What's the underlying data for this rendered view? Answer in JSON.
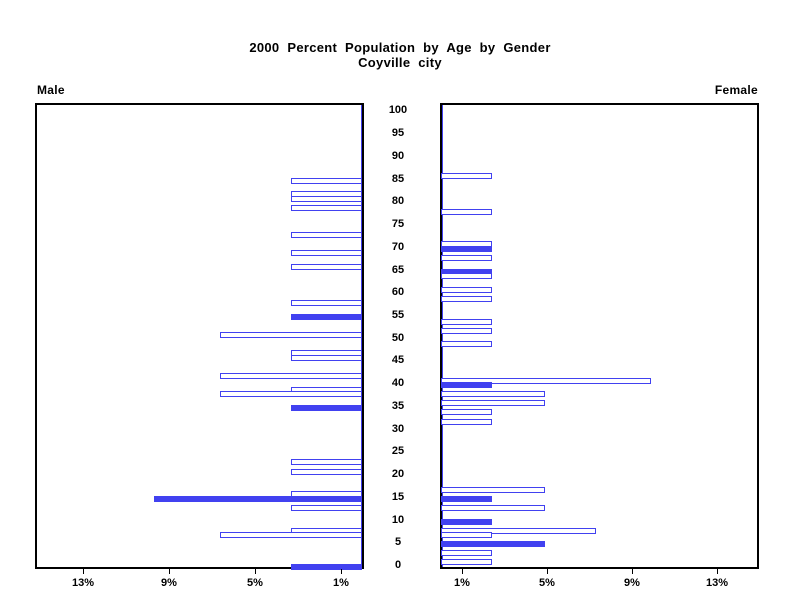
{
  "colors": {
    "bar_blue": "#4141f0",
    "frame": "#000000",
    "background": "#ffffff"
  },
  "chart_data": {
    "type": "bar",
    "subtype": "population_pyramid",
    "title": "2000 Percent Population by Age by Gender",
    "subtitle": "Coyville city",
    "orientation": "horizontal, mirrored; male bars extend left, female bars extend right",
    "grid": "off",
    "legend": "none",
    "age_axis": {
      "min": 0,
      "max": 100,
      "step": 5,
      "tick_labels": [
        "0",
        "5",
        "10",
        "15",
        "20",
        "25",
        "30",
        "35",
        "40",
        "45",
        "50",
        "55",
        "60",
        "65",
        "70",
        "75",
        "80",
        "85",
        "90",
        "95",
        "100"
      ]
    },
    "percent_axis": {
      "min": 0,
      "max": 15,
      "male_ticks": [
        {
          "pct": 13,
          "label": "13%"
        },
        {
          "pct": 9,
          "label": "9%"
        },
        {
          "pct": 5,
          "label": "5%"
        },
        {
          "pct": 1,
          "label": "1%"
        }
      ],
      "female_ticks": [
        {
          "pct": 1,
          "label": "1%"
        },
        {
          "pct": 5,
          "label": "5%"
        },
        {
          "pct": 9,
          "label": "9%"
        },
        {
          "pct": 13,
          "label": "13%"
        }
      ]
    },
    "bar_style_note": "hollow = white bar with blue outline; filled = solid blue bar",
    "male": {
      "label": "Male",
      "bars": [
        {
          "age": 85,
          "pct": 3.3,
          "filled": false
        },
        {
          "age": 82,
          "pct": 3.3,
          "filled": false
        },
        {
          "age": 81,
          "pct": 3.3,
          "filled": false
        },
        {
          "age": 79,
          "pct": 3.3,
          "filled": false
        },
        {
          "age": 73,
          "pct": 3.3,
          "filled": false
        },
        {
          "age": 69,
          "pct": 3.3,
          "filled": false
        },
        {
          "age": 66,
          "pct": 3.3,
          "filled": false
        },
        {
          "age": 58,
          "pct": 3.3,
          "filled": false
        },
        {
          "age": 55,
          "pct": 3.3,
          "filled": true
        },
        {
          "age": 51,
          "pct": 6.6,
          "filled": false
        },
        {
          "age": 47,
          "pct": 3.3,
          "filled": false
        },
        {
          "age": 46,
          "pct": 3.3,
          "filled": false
        },
        {
          "age": 42,
          "pct": 6.6,
          "filled": false
        },
        {
          "age": 39,
          "pct": 3.3,
          "filled": false
        },
        {
          "age": 38,
          "pct": 6.6,
          "filled": false
        },
        {
          "age": 35,
          "pct": 3.3,
          "filled": true
        },
        {
          "age": 23,
          "pct": 3.3,
          "filled": false
        },
        {
          "age": 21,
          "pct": 3.3,
          "filled": false
        },
        {
          "age": 16,
          "pct": 3.3,
          "filled": false
        },
        {
          "age": 15,
          "pct": 9.7,
          "filled": true
        },
        {
          "age": 13,
          "pct": 3.3,
          "filled": false
        },
        {
          "age": 8,
          "pct": 3.3,
          "filled": false
        },
        {
          "age": 7,
          "pct": 6.6,
          "filled": false
        },
        {
          "age": 0,
          "pct": 3.3,
          "filled": true
        }
      ]
    },
    "female": {
      "label": "Female",
      "bars": [
        {
          "age": 86,
          "pct": 2.4,
          "filled": false
        },
        {
          "age": 78,
          "pct": 2.4,
          "filled": false
        },
        {
          "age": 71,
          "pct": 2.4,
          "filled": false
        },
        {
          "age": 70,
          "pct": 2.4,
          "filled": true
        },
        {
          "age": 68,
          "pct": 2.4,
          "filled": false
        },
        {
          "age": 65,
          "pct": 2.4,
          "filled": true
        },
        {
          "age": 64,
          "pct": 2.4,
          "filled": false
        },
        {
          "age": 61,
          "pct": 2.4,
          "filled": false
        },
        {
          "age": 59,
          "pct": 2.4,
          "filled": false
        },
        {
          "age": 54,
          "pct": 2.4,
          "filled": false
        },
        {
          "age": 52,
          "pct": 2.4,
          "filled": false
        },
        {
          "age": 49,
          "pct": 2.4,
          "filled": false
        },
        {
          "age": 41,
          "pct": 9.9,
          "filled": false
        },
        {
          "age": 40,
          "pct": 2.4,
          "filled": true
        },
        {
          "age": 38,
          "pct": 4.9,
          "filled": false
        },
        {
          "age": 36,
          "pct": 4.9,
          "filled": false
        },
        {
          "age": 34,
          "pct": 2.4,
          "filled": false
        },
        {
          "age": 32,
          "pct": 2.4,
          "filled": false
        },
        {
          "age": 17,
          "pct": 4.9,
          "filled": false
        },
        {
          "age": 15,
          "pct": 2.4,
          "filled": true
        },
        {
          "age": 13,
          "pct": 4.9,
          "filled": false
        },
        {
          "age": 10,
          "pct": 2.4,
          "filled": true
        },
        {
          "age": 8,
          "pct": 7.3,
          "filled": false
        },
        {
          "age": 7,
          "pct": 2.4,
          "filled": false
        },
        {
          "age": 5,
          "pct": 4.9,
          "filled": true
        },
        {
          "age": 3,
          "pct": 2.4,
          "filled": false
        },
        {
          "age": 1,
          "pct": 2.4,
          "filled": false
        }
      ]
    }
  }
}
